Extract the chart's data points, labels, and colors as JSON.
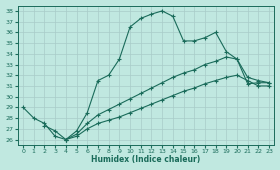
{
  "title": "",
  "xlabel": "Humidex (Indice chaleur)",
  "xlim": [
    -0.5,
    23.5
  ],
  "ylim": [
    25.5,
    38.5
  ],
  "xticks": [
    0,
    1,
    2,
    3,
    4,
    5,
    6,
    7,
    8,
    9,
    10,
    11,
    12,
    13,
    14,
    15,
    16,
    17,
    18,
    19,
    20,
    21,
    22,
    23
  ],
  "yticks": [
    26,
    27,
    28,
    29,
    30,
    31,
    32,
    33,
    34,
    35,
    36,
    37,
    38
  ],
  "bg_color": "#c0e8e0",
  "line_color": "#1a6b5a",
  "grid_color": "#a8ccc8",
  "curves": [
    {
      "x": [
        0,
        1,
        2,
        3,
        4,
        5,
        6,
        7,
        8,
        9,
        10,
        11,
        12,
        13,
        14,
        15,
        16,
        17,
        18,
        19,
        20,
        21,
        22,
        23
      ],
      "y": [
        29.0,
        28.0,
        27.5,
        26.3,
        26.0,
        26.8,
        28.5,
        31.5,
        32.0,
        33.5,
        36.5,
        37.3,
        37.7,
        38.0,
        37.5,
        35.2,
        35.2,
        35.5,
        36.0,
        34.2,
        33.5,
        31.2,
        31.3,
        31.3
      ]
    },
    {
      "x": [
        4,
        5,
        6,
        7,
        8,
        9,
        10,
        11,
        12,
        13,
        14,
        15,
        16,
        17,
        18,
        19,
        20,
        21,
        22,
        23
      ],
      "y": [
        26.0,
        26.5,
        27.5,
        28.3,
        28.8,
        29.3,
        29.8,
        30.3,
        30.8,
        31.3,
        31.8,
        32.2,
        32.5,
        33.0,
        33.3,
        33.7,
        33.5,
        31.8,
        31.5,
        31.3
      ]
    },
    {
      "x": [
        2,
        3,
        4,
        5,
        6,
        7,
        8,
        9,
        10,
        11,
        12,
        13,
        14,
        15,
        16,
        17,
        18,
        19,
        20,
        21,
        22,
        23
      ],
      "y": [
        27.3,
        26.8,
        26.0,
        26.3,
        27.0,
        27.5,
        27.8,
        28.1,
        28.5,
        28.9,
        29.3,
        29.7,
        30.1,
        30.5,
        30.8,
        31.2,
        31.5,
        31.8,
        32.0,
        31.5,
        31.0,
        31.0
      ]
    }
  ]
}
